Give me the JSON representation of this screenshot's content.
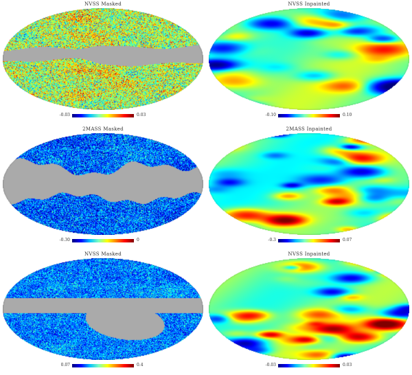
{
  "panels": [
    {
      "title": "NVSS Masked",
      "cmin": "-0.03",
      "cmax": "0.03",
      "style": "noise-cmb",
      "mask": "galactic",
      "color": "#aaaaaa"
    },
    {
      "title": "NVSS Inpainted",
      "cmin": "-0.10",
      "cmax": "0.10",
      "style": "smooth-a",
      "mask": "none",
      "color": "#aaaaaa"
    },
    {
      "title": "2MASS Masked",
      "cmin": "-0.30",
      "cmax": "0",
      "style": "noise-blue",
      "mask": "galactic-wide",
      "color": "#aaaaaa"
    },
    {
      "title": "2MASS Inpainted",
      "cmin": "-0.3",
      "cmax": "0.07",
      "style": "smooth-b",
      "mask": "none",
      "color": "#aaaaaa"
    },
    {
      "title": "NVSS Masked",
      "cmin": "0.07",
      "cmax": "0.4",
      "style": "noise-blue2",
      "mask": "band-ellipse",
      "color": "#aaaaaa"
    },
    {
      "title": "NVSS Inpainted",
      "cmin": "-0.03",
      "cmax": "0.03",
      "style": "smooth-c",
      "mask": "none",
      "color": "#aaaaaa"
    }
  ]
}
